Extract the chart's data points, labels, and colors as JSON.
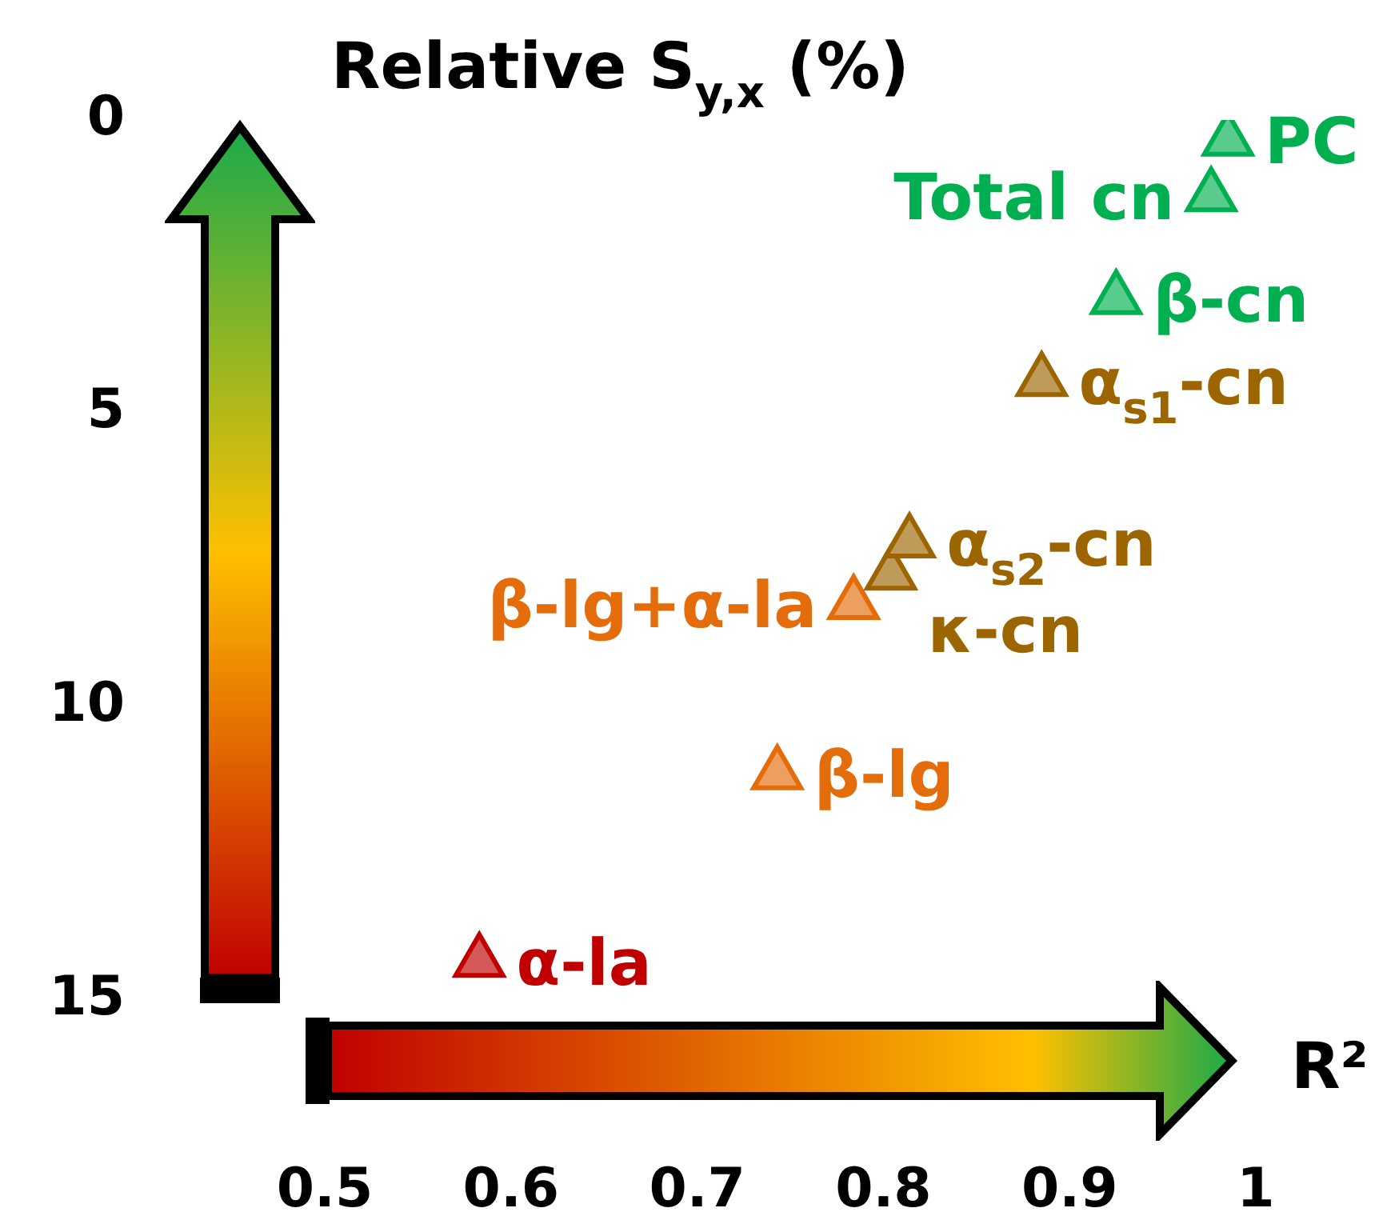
{
  "chart_data": {
    "type": "scatter",
    "xlabel": "R²",
    "ylabel": "Relative S$_{y,x}$ (%)",
    "xlim": [
      0.5,
      1
    ],
    "xticks": [
      0.5,
      0.6,
      0.7,
      0.8,
      0.9,
      1
    ],
    "ylim": [
      15,
      0
    ],
    "yticks": [
      0,
      5,
      10,
      15
    ],
    "marker": "triangle",
    "series": [
      {
        "name": "PC",
        "color": "#00b050",
        "x": [
          0.985
        ],
        "values": [
          0.35
        ]
      },
      {
        "name": "Total cn",
        "color": "#00b050",
        "x": [
          0.976
        ],
        "values": [
          1.3
        ]
      },
      {
        "name": "β-cn",
        "color": "#00b050",
        "x": [
          0.925
        ],
        "values": [
          3.05
        ]
      },
      {
        "name": "α$_{s1}$-cn",
        "color": "#9c6500",
        "x": [
          0.885
        ],
        "values": [
          4.45
        ]
      },
      {
        "name": "α$_{s2}$-cn",
        "color": "#9c6500",
        "x": [
          0.814
        ],
        "values": [
          7.2
        ]
      },
      {
        "name": "κ-cn",
        "color": "#9c6500",
        "x": [
          0.804
        ],
        "values": [
          7.75
        ]
      },
      {
        "name": "β-lg+α-la",
        "color": "#e46c0a",
        "x": [
          0.784
        ],
        "values": [
          8.25
        ]
      },
      {
        "name": "β-lg",
        "color": "#e46c0a",
        "x": [
          0.743
        ],
        "values": [
          11.15
        ]
      },
      {
        "name": "α-la",
        "color": "#c00000",
        "x": [
          0.583
        ],
        "values": [
          14.35
        ]
      }
    ]
  }
}
